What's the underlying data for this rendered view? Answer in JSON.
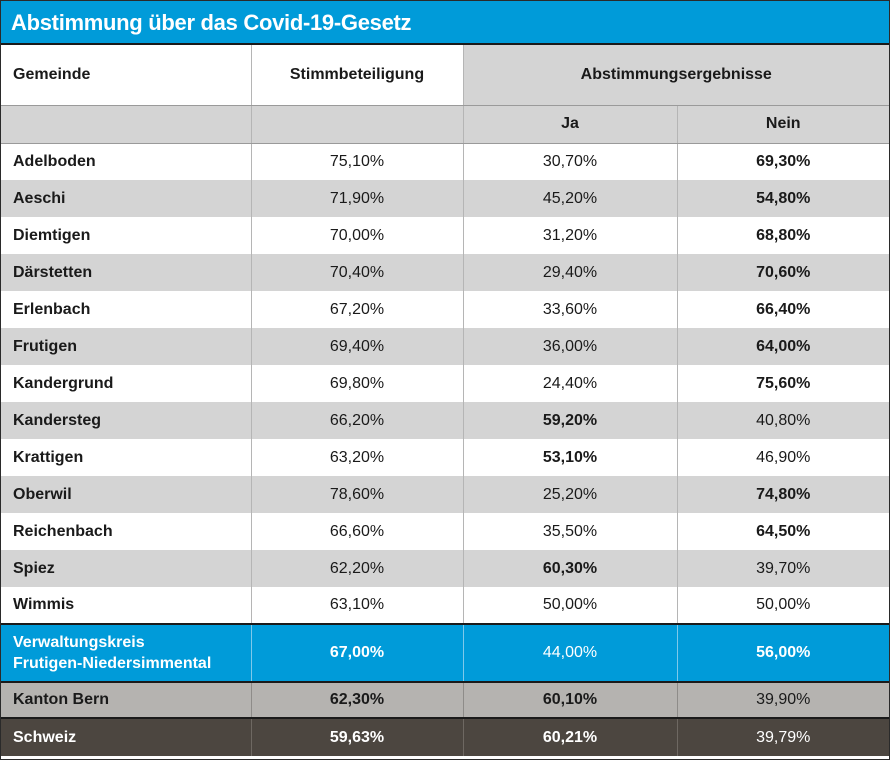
{
  "title": "Abstimmung über das Covid-19-Gesetz",
  "headers": {
    "gemeinde": "Gemeinde",
    "stimmbeteiligung": "Stimmbeteiligung",
    "ergebnisse": "Abstimmungsergebnisse",
    "ja": "Ja",
    "nein": "Nein"
  },
  "rows": [
    {
      "name": "Adelboden",
      "beteiligung": "75,10%",
      "ja": "30,70%",
      "nein": "69,30%",
      "winner": "nein"
    },
    {
      "name": "Aeschi",
      "beteiligung": "71,90%",
      "ja": "45,20%",
      "nein": "54,80%",
      "winner": "nein"
    },
    {
      "name": "Diemtigen",
      "beteiligung": "70,00%",
      "ja": "31,20%",
      "nein": "68,80%",
      "winner": "nein"
    },
    {
      "name": "Därstetten",
      "beteiligung": "70,40%",
      "ja": "29,40%",
      "nein": "70,60%",
      "winner": "nein"
    },
    {
      "name": "Erlenbach",
      "beteiligung": "67,20%",
      "ja": "33,60%",
      "nein": "66,40%",
      "winner": "nein"
    },
    {
      "name": "Frutigen",
      "beteiligung": "69,40%",
      "ja": "36,00%",
      "nein": "64,00%",
      "winner": "nein"
    },
    {
      "name": "Kandergrund",
      "beteiligung": "69,80%",
      "ja": "24,40%",
      "nein": "75,60%",
      "winner": "nein"
    },
    {
      "name": "Kandersteg",
      "beteiligung": "66,20%",
      "ja": "59,20%",
      "nein": "40,80%",
      "winner": "ja"
    },
    {
      "name": "Krattigen",
      "beteiligung": "63,20%",
      "ja": "53,10%",
      "nein": "46,90%",
      "winner": "ja"
    },
    {
      "name": "Oberwil",
      "beteiligung": "78,60%",
      "ja": "25,20%",
      "nein": "74,80%",
      "winner": "nein"
    },
    {
      "name": "Reichenbach",
      "beteiligung": "66,60%",
      "ja": "35,50%",
      "nein": "64,50%",
      "winner": "nein"
    },
    {
      "name": "Spiez",
      "beteiligung": "62,20%",
      "ja": "60,30%",
      "nein": "39,70%",
      "winner": "ja"
    },
    {
      "name": "Wimmis",
      "beteiligung": "63,10%",
      "ja": "50,00%",
      "nein": "50,00%",
      "winner": "none"
    }
  ],
  "verwaltungskreis": {
    "name_line1": "Verwaltungskreis",
    "name_line2": "Frutigen-Niedersimmental",
    "beteiligung": "67,00%",
    "ja": "44,00%",
    "nein": "56,00%"
  },
  "kanton": {
    "name": "Kanton Bern",
    "beteiligung": "62,30%",
    "ja": "60,10%",
    "nein": "39,90%"
  },
  "schweiz": {
    "name": "Schweiz",
    "beteiligung": "59,63%",
    "ja": "60,21%",
    "nein": "39,79%"
  },
  "colors": {
    "accent_blue": "#009bd9",
    "row_grey": "#d4d4d4",
    "kanton_grey": "#b5b3b0",
    "schweiz_dark": "#4c4640"
  }
}
